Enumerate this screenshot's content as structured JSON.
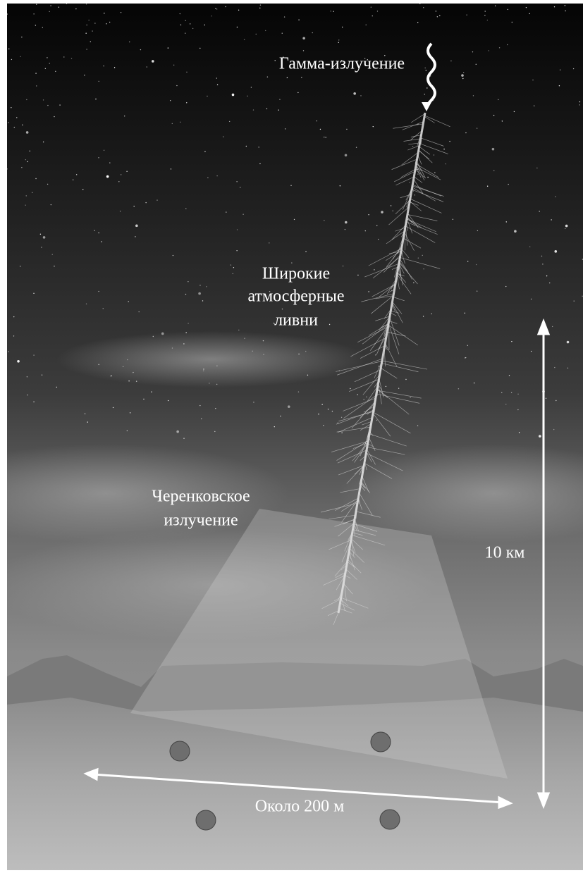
{
  "labels": {
    "gamma": "Гамма-излучение",
    "showers": [
      "Широкие",
      "атмосферные",
      "ливни"
    ],
    "cherenkov": [
      "Черенковское",
      "излучение"
    ],
    "height": "10 км",
    "width": "Около 200 м"
  }
}
